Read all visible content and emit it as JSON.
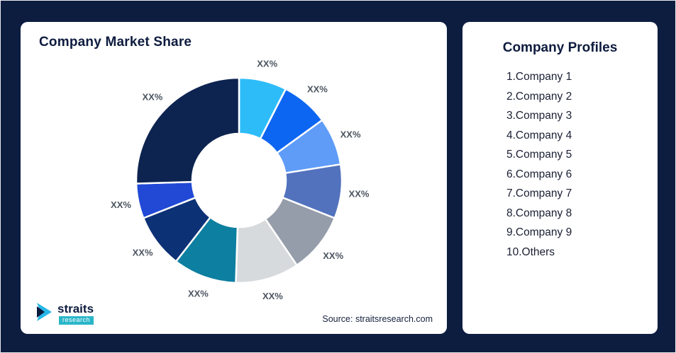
{
  "background_color": "#0d1d40",
  "left_card": {
    "title": "Company Market Share",
    "source": "Source: straitsresearch.com",
    "logo": {
      "name": "straits",
      "sub": "research"
    }
  },
  "right_card": {
    "title": "Company Profiles",
    "items": [
      "1.Company 1",
      "2.Company 2",
      "3.Company 3",
      "4.Company 4",
      "5.Company 5",
      "6.Company 6",
      "7.Company 7",
      "8.Company 8",
      "9.Company 9",
      "10.Others"
    ]
  },
  "chart_data": {
    "type": "pie",
    "subtype": "donut",
    "title": "Company Market Share",
    "inner_radius_ratio": 0.455,
    "start_angle_deg": 0,
    "direction": "clockwise",
    "legend_position": "none",
    "data_labels": "outside",
    "segments": [
      {
        "name": "Company 1",
        "label": "XX%",
        "value": 7.5,
        "color": "#2ebcf8"
      },
      {
        "name": "Company 2",
        "label": "XX%",
        "value": 7.5,
        "color": "#0d66f2"
      },
      {
        "name": "Company 3",
        "label": "XX%",
        "value": 7.5,
        "color": "#5f9cf8"
      },
      {
        "name": "Company 4",
        "label": "XX%",
        "value": 8.5,
        "color": "#5272bd"
      },
      {
        "name": "Company 5",
        "label": "XX%",
        "value": 9.5,
        "color": "#959daa"
      },
      {
        "name": "Company 6",
        "label": "XX%",
        "value": 10,
        "color": "#d7dadd"
      },
      {
        "name": "Company 7",
        "label": "XX%",
        "value": 10,
        "color": "#0d7fa0"
      },
      {
        "name": "Company 8",
        "label": "XX%",
        "value": 8.5,
        "color": "#0d3175"
      },
      {
        "name": "Company 9",
        "label": "XX%",
        "value": 5.5,
        "color": "#2149d6"
      },
      {
        "name": "Others",
        "label": "XX%",
        "value": 25.5,
        "color": "#0d2350"
      }
    ]
  }
}
